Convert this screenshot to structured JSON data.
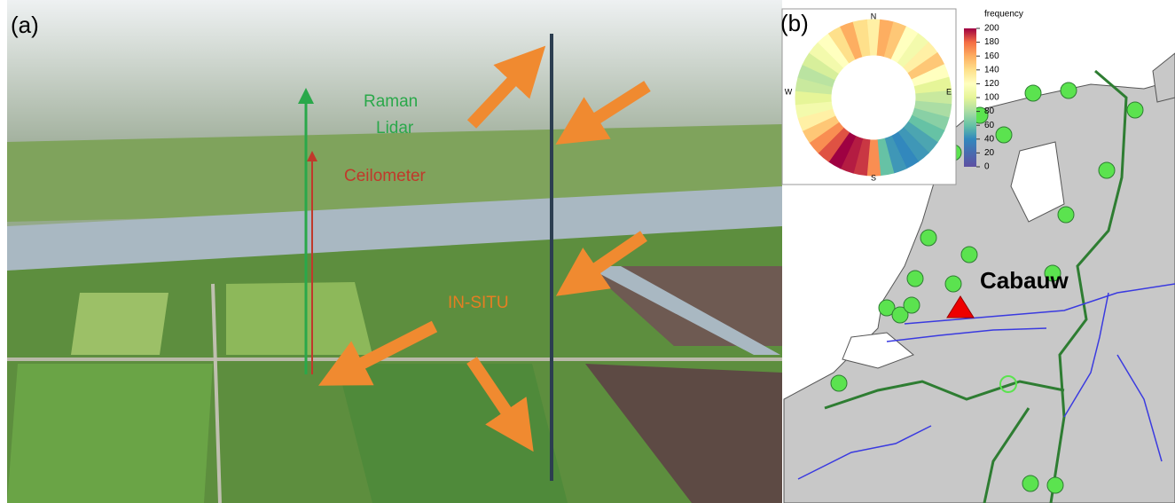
{
  "panel_a": {
    "label": "(a)",
    "raman": "Raman",
    "lidar": "Lidar",
    "ceilometer": "Ceilometer",
    "in_situ": "IN-SITU"
  },
  "panel_b": {
    "label": "(b)",
    "site": "Cabauw",
    "wind_rose": {
      "north": "N",
      "east": "E",
      "south": "S",
      "west": "W",
      "frequencies": [
        130,
        160,
        150,
        120,
        110,
        130,
        150,
        120,
        100,
        90,
        80,
        70,
        60,
        50,
        45,
        40,
        45,
        60,
        170,
        190,
        195,
        200,
        185,
        170,
        150,
        130,
        110,
        100,
        90,
        85,
        95,
        110,
        120,
        140,
        160,
        140
      ]
    },
    "colorbar": {
      "label": "frequency",
      "lim": [
        0,
        200
      ],
      "ticks": [
        0,
        20,
        40,
        60,
        80,
        100,
        120,
        140,
        160,
        180,
        200
      ]
    }
  }
}
